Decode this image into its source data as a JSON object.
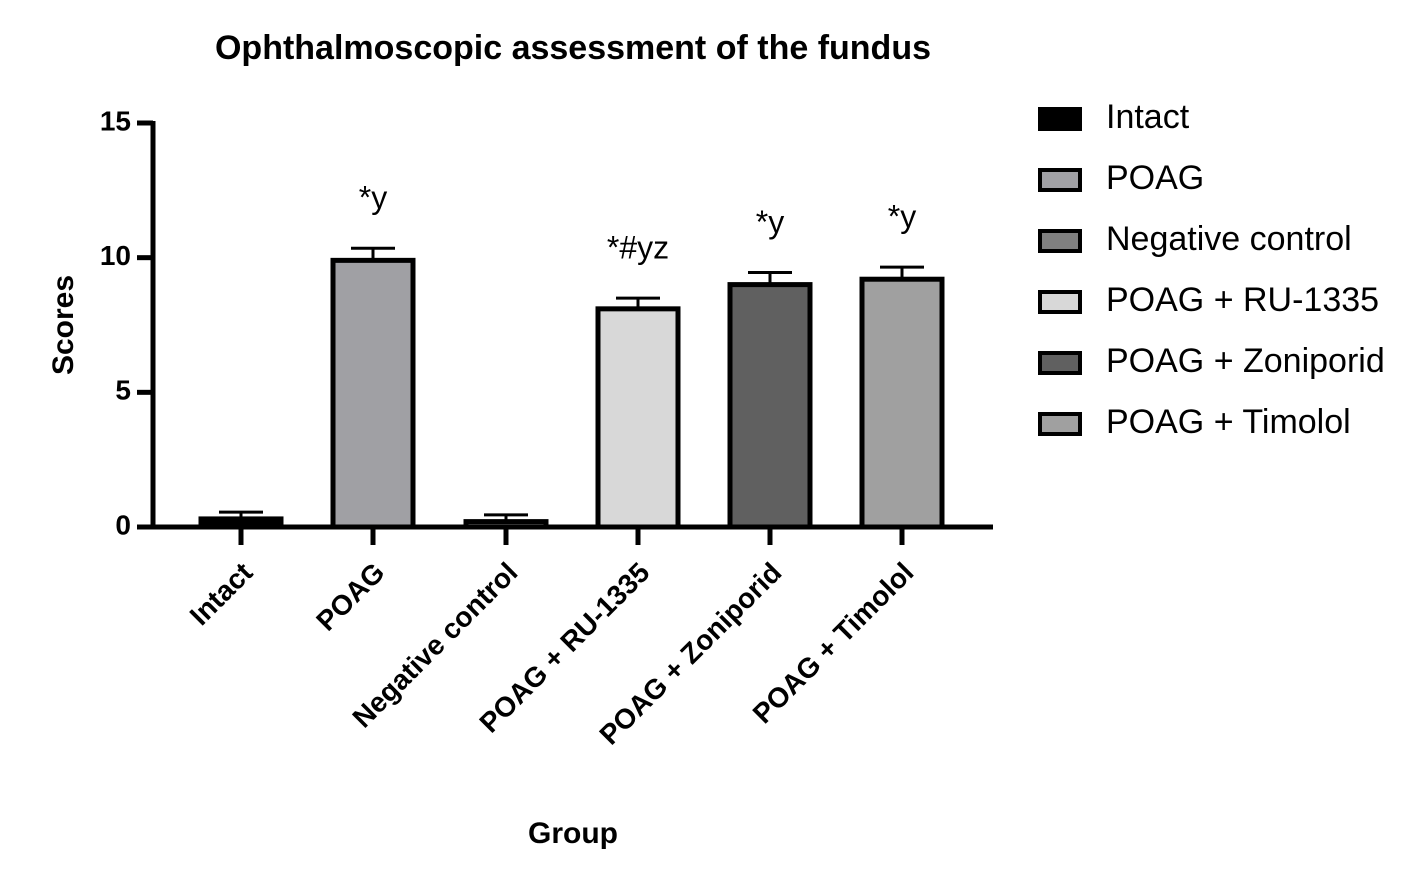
{
  "chart_data": {
    "type": "bar",
    "title": "Ophthalmoscopic assessment of the fundus",
    "x_label": "Group",
    "y_label": "Scores",
    "categories": [
      "Intact",
      "POAG",
      "Negative control",
      "POAG + RU-1335",
      "POAG + Zoniporid",
      "POAG + Timolol"
    ],
    "values": [
      0.3,
      9.9,
      0.2,
      8.1,
      9.0,
      9.2
    ],
    "errors": [
      0.25,
      0.45,
      0.25,
      0.4,
      0.45,
      0.45
    ],
    "annotations": [
      null,
      "*y",
      null,
      "*#yz",
      "*y",
      "*y"
    ],
    "colors": [
      "#000000",
      "#a0a0a4",
      "#808080",
      "#d8d8d8",
      "#606060",
      "#a0a0a0"
    ],
    "ylim": [
      0,
      15
    ],
    "yticks": [
      0,
      5,
      10,
      15
    ],
    "legend": "right"
  }
}
